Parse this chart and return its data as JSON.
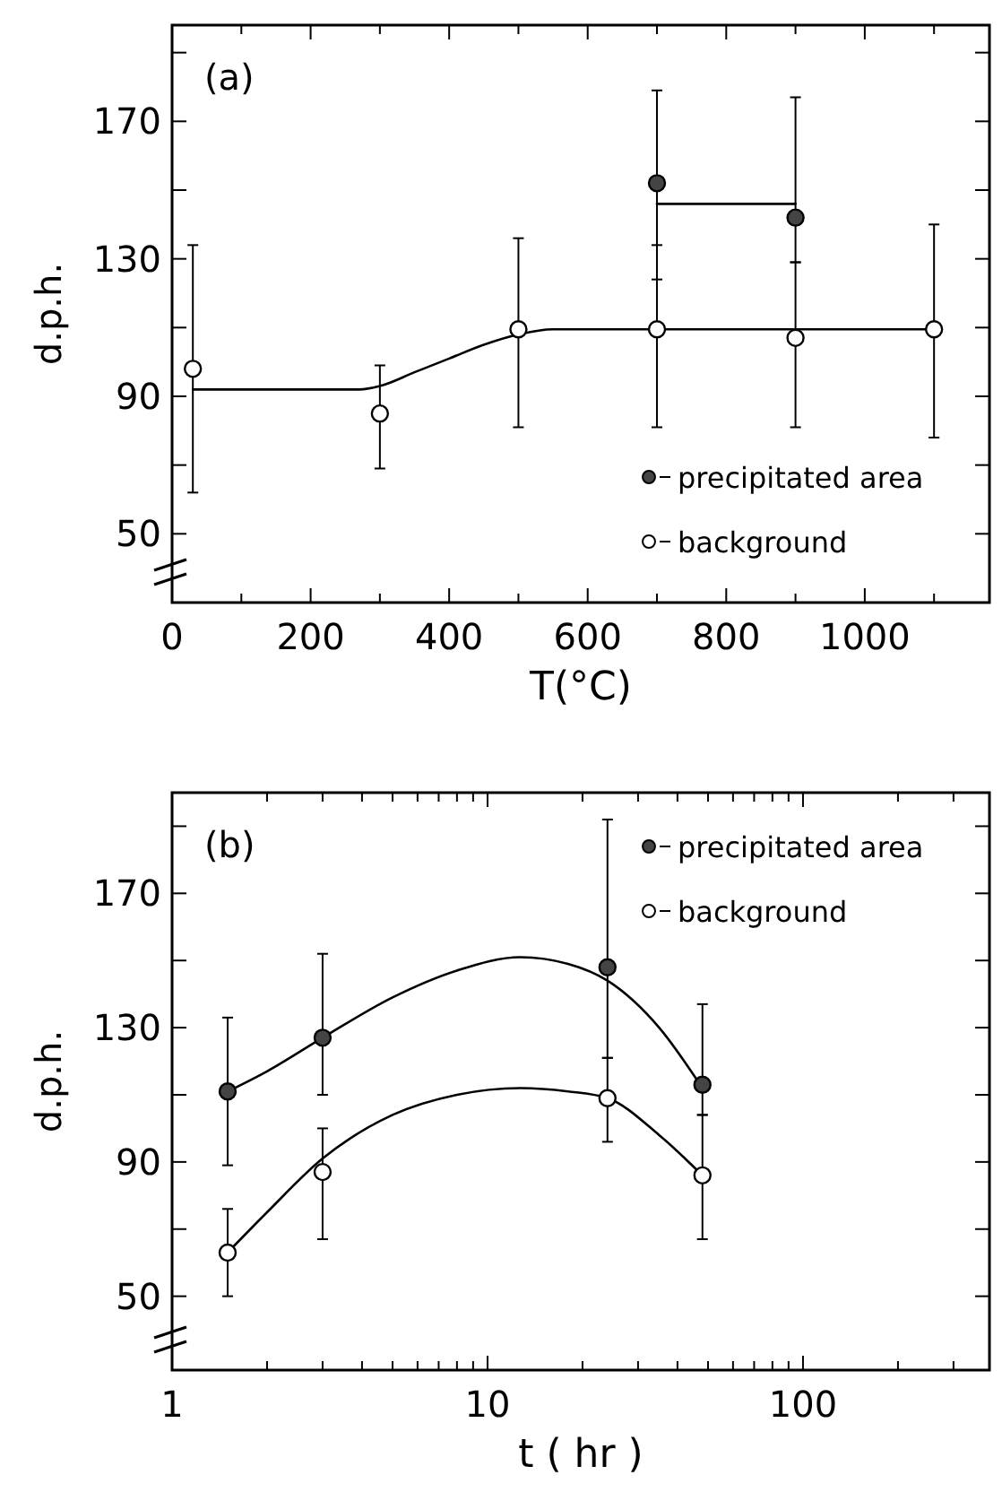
{
  "chart_data": [
    {
      "type": "scatter",
      "title": "(a)",
      "xlabel": "T(°C)",
      "ylabel": "d.p.h.",
      "xlim": [
        0,
        1180
      ],
      "ylim": [
        30,
        198
      ],
      "xticks": [
        0,
        {
          "value": 100,
          "label": null
        },
        200,
        {
          "value": 300,
          "label": null
        },
        400,
        {
          "value": 500,
          "label": null
        },
        600,
        {
          "value": 700,
          "label": null
        },
        800,
        {
          "value": 900,
          "label": null
        },
        1000,
        {
          "value": 1100,
          "label": null
        }
      ],
      "yticks": [
        50,
        {
          "value": 70,
          "label": null
        },
        90,
        {
          "value": 110,
          "label": null
        },
        130,
        {
          "value": 150,
          "label": null
        },
        170,
        {
          "value": 190,
          "label": null
        }
      ],
      "legend": "bottom right",
      "marker": "circle",
      "series": [
        {
          "type": "line",
          "color": "#000000",
          "marker": "none",
          "x": [
            30,
            270,
            300,
            350,
            400,
            450,
            500,
            550,
            700,
            900,
            1100
          ],
          "values": [
            92,
            92,
            93,
            97,
            101,
            105,
            108,
            109.5,
            109.5,
            109.5,
            109.5
          ]
        },
        {
          "type": "line",
          "color": "#000000",
          "marker": "none",
          "x": [
            700,
            900
          ],
          "values": [
            146,
            146
          ]
        },
        {
          "name": "precipitated area",
          "color": "#444444",
          "x": [
            700,
            900
          ],
          "values": [
            152,
            142
          ],
          "errors": [
            [
              124,
              179
            ],
            [
              129,
              177
            ]
          ]
        },
        {
          "name": "background",
          "color": "#ffffff",
          "x": [
            30,
            300,
            500,
            700,
            900,
            1100
          ],
          "values": [
            98,
            85,
            109.5,
            109.5,
            107,
            109.5
          ],
          "errors": [
            [
              62,
              134
            ],
            [
              69,
              99
            ],
            [
              81,
              136
            ],
            [
              81,
              134
            ],
            [
              81,
              129
            ],
            [
              78,
              140
            ]
          ]
        }
      ]
    },
    {
      "type": "scatter",
      "title": "(b)",
      "xlabel": "t  ( hr )",
      "ylabel": "d.p.h.",
      "log": "x",
      "xlim": [
        1,
        390
      ],
      "ylim": [
        28,
        200
      ],
      "xticks": [
        1,
        {
          "value": 2,
          "label": null
        },
        {
          "value": 3,
          "label": null
        },
        {
          "value": 4,
          "label": null
        },
        {
          "value": 5,
          "label": null
        },
        {
          "value": 6,
          "label": null
        },
        {
          "value": 7,
          "label": null
        },
        {
          "value": 8,
          "label": null
        },
        {
          "value": 9,
          "label": null
        },
        10,
        {
          "value": 20,
          "label": null
        },
        {
          "value": 30,
          "label": null
        },
        {
          "value": 40,
          "label": null
        },
        {
          "value": 50,
          "label": null
        },
        {
          "value": 60,
          "label": null
        },
        {
          "value": 70,
          "label": null
        },
        {
          "value": 80,
          "label": null
        },
        {
          "value": 90,
          "label": null
        },
        100,
        {
          "value": 200,
          "label": null
        },
        {
          "value": 300,
          "label": null
        }
      ],
      "yticks": [
        50,
        {
          "value": 70,
          "label": null
        },
        90,
        {
          "value": 110,
          "label": null
        },
        130,
        {
          "value": 150,
          "label": null
        },
        170,
        {
          "value": 190,
          "label": null
        }
      ],
      "legend": "top right",
      "marker": "circle",
      "series": [
        {
          "type": "line",
          "color": "#000000",
          "marker": "none",
          "x": [
            1.5,
            2,
            3,
            5,
            8,
            12.7,
            18,
            24,
            35,
            48
          ],
          "values": [
            111,
            117,
            127,
            139,
            147,
            151,
            149,
            144,
            130,
            112
          ]
        },
        {
          "type": "line",
          "color": "#000000",
          "marker": "none",
          "x": [
            1.5,
            2,
            3,
            5,
            8,
            12.7,
            18,
            24,
            35,
            48
          ],
          "values": [
            63,
            75,
            91,
            104,
            110,
            112,
            111,
            109,
            98,
            86
          ]
        },
        {
          "name": "precipitated area",
          "color": "#444444",
          "x": [
            1.5,
            3,
            24,
            48
          ],
          "values": [
            111,
            127,
            148,
            113
          ],
          "errors": [
            [
              89,
              133
            ],
            [
              110,
              152
            ],
            [
              121,
              192
            ],
            [
              104,
              137
            ]
          ]
        },
        {
          "name": "background",
          "color": "#ffffff",
          "x": [
            1.5,
            3,
            24,
            48
          ],
          "values": [
            63,
            87,
            109,
            86
          ],
          "errors": [
            [
              50,
              76
            ],
            [
              67,
              100
            ],
            [
              96,
              121
            ],
            [
              67,
              104
            ]
          ]
        }
      ]
    }
  ]
}
